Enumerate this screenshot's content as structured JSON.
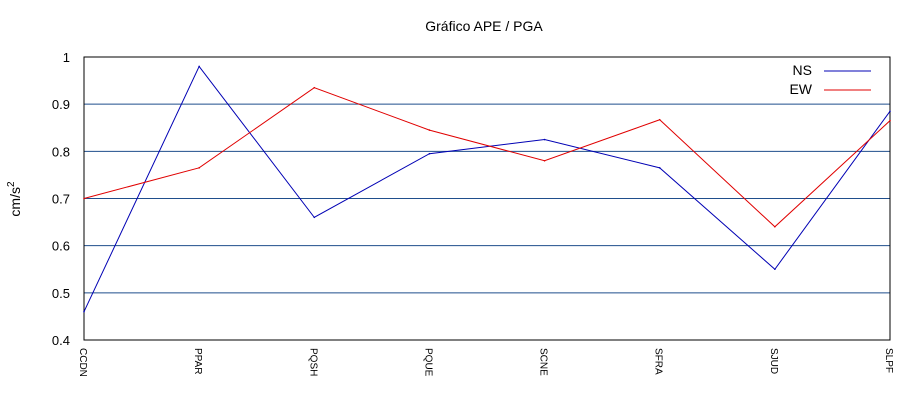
{
  "chart_data": {
    "type": "line",
    "title": "Gráfico  APE / PGA",
    "xlabel": "",
    "ylabel": "cm/s",
    "ylabel_superscript": "2",
    "categories": [
      "CCDN",
      "PPAR",
      "PQSH",
      "PQUE",
      "SCNE",
      "SFRA",
      "SJUD",
      "SLPF"
    ],
    "ylim": [
      0.4,
      1.0
    ],
    "yticks": [
      "0.4",
      "0.5",
      "0.6",
      "0.7",
      "0.8",
      "0.9",
      "1"
    ],
    "grid": "horizontal",
    "legend_position": "top-right",
    "series": [
      {
        "name": "NS",
        "color": "#0000b4",
        "values": [
          0.46,
          0.98,
          0.66,
          0.795,
          0.825,
          0.765,
          0.55,
          0.885
        ]
      },
      {
        "name": "EW",
        "color": "#e00000",
        "values": [
          0.7,
          0.765,
          0.935,
          0.845,
          0.78,
          0.867,
          0.64,
          0.865
        ]
      }
    ],
    "colors": {
      "grid": "#1f4e8c",
      "frame": "#000000"
    }
  }
}
